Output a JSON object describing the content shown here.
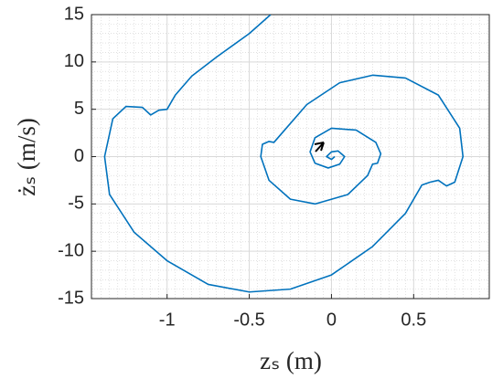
{
  "chart_data": {
    "type": "line",
    "x_label": "zₛ (m)",
    "y_label": "żₛ (m/s)",
    "x": [
      -0.37,
      -0.5,
      -0.7,
      -0.85,
      -0.95,
      -1.0,
      -1.05,
      -1.1,
      -1.15,
      -1.25,
      -1.33,
      -1.38,
      -1.35,
      -1.2,
      -1.0,
      -0.75,
      -0.5,
      -0.25,
      0.0,
      0.25,
      0.45,
      0.55,
      0.6,
      0.65,
      0.7,
      0.75,
      0.8,
      0.78,
      0.65,
      0.45,
      0.25,
      0.05,
      -0.15,
      -0.3,
      -0.35,
      -0.38,
      -0.42,
      -0.43,
      -0.38,
      -0.25,
      -0.1,
      0.1,
      0.22,
      0.25,
      0.28,
      0.3,
      0.27,
      0.15,
      0.0,
      -0.1,
      -0.13,
      -0.1,
      -0.02,
      0.05,
      0.08,
      0.04,
      0.0,
      -0.03,
      0.0,
      0.02
    ],
    "series": [
      {
        "color": "#0072bd",
        "values": [
          15,
          13,
          10.5,
          8.5,
          6.5,
          5,
          4.9,
          4.4,
          5.2,
          5.3,
          4,
          0,
          -4,
          -8,
          -11,
          -13.5,
          -14.3,
          -14,
          -12.5,
          -9.5,
          -6,
          -3,
          -2.7,
          -2.5,
          -3.1,
          -2.7,
          0,
          3,
          6.5,
          8.3,
          8.6,
          7.8,
          5.5,
          2.5,
          1.5,
          1.6,
          1.3,
          0,
          -2.5,
          -4.5,
          -5,
          -4,
          -2,
          -0.8,
          -0.7,
          0.3,
          1.5,
          2.8,
          3,
          2,
          0.5,
          -0.7,
          -1.2,
          -0.8,
          0,
          0.6,
          0.5,
          0,
          -0.3,
          0
        ]
      }
    ],
    "xlim": [
      -1.46,
      0.96
    ],
    "ylim": [
      -15,
      15
    ],
    "xticks": [
      -1,
      -0.5,
      0,
      0.5
    ],
    "yticks": [
      -15,
      -10,
      -5,
      0,
      5,
      10,
      15
    ],
    "grid": true,
    "minor_grid": true
  }
}
